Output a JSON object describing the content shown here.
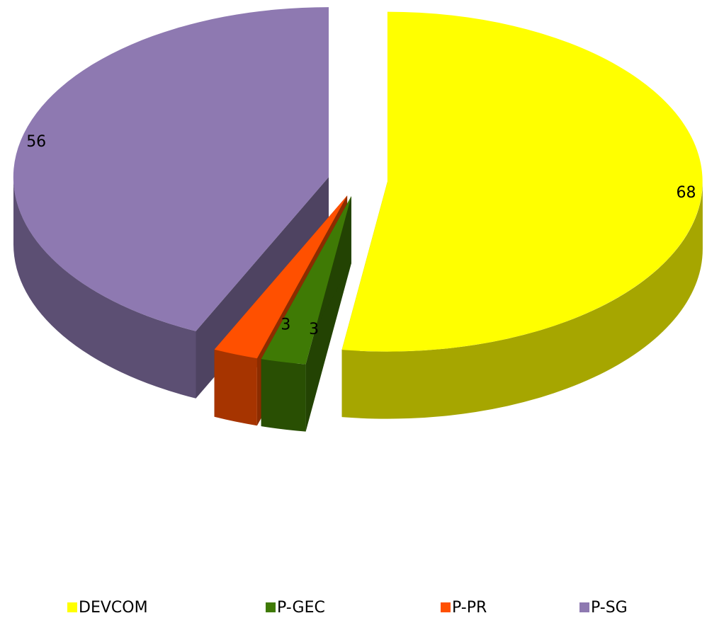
{
  "chart_data": {
    "type": "pie",
    "categories": [
      "DEVCOM",
      "P-GEC",
      "P-PR",
      "P-SG"
    ],
    "values": [
      68,
      3,
      3,
      56
    ],
    "colors": [
      "#ffff00",
      "#3f7a05",
      "#ff5000",
      "#8e79b1"
    ],
    "three_d": true,
    "exploded": true,
    "legend": "bottom"
  }
}
